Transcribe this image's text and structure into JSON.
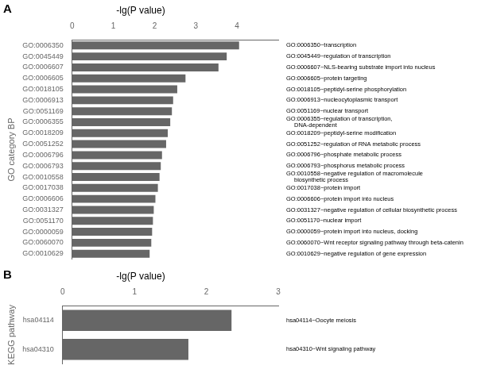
{
  "chart_data": [
    {
      "type": "bar",
      "orientation": "horizontal",
      "panel_label": "A",
      "title": "-lg(P value)",
      "y_label": "GO category BP",
      "categories": [
        "GO:0006350",
        "GO:0045449",
        "GO:0006607",
        "GO:0006605",
        "GO:0018105",
        "GO:0006913",
        "GO:0051169",
        "GO:0006355",
        "GO:0018209",
        "GO:0051252",
        "GO:0006796",
        "GO:0006793",
        "GO:0010558",
        "GO:0017038",
        "GO:0006606",
        "GO:0031327",
        "GO:0051170",
        "GO:0000059",
        "GO:0060070",
        "GO:0010629"
      ],
      "values": [
        4.05,
        3.75,
        3.55,
        2.75,
        2.55,
        2.45,
        2.42,
        2.38,
        2.32,
        2.28,
        2.18,
        2.15,
        2.12,
        2.08,
        2.02,
        1.98,
        1.96,
        1.94,
        1.92,
        1.88
      ],
      "annotations": [
        "GO:0006350~transcription",
        "GO:0045449~regulation of transcription",
        "GO:0006607~NLS-bearing substrate import into nucleus",
        "GO:0006605~protein targeting",
        "GO:0018105~peptidyl-serine phosphorylation",
        "GO:0006913~nucleocytoplasmic transport",
        "GO:0051169~nuclear transport",
        [
          "GO:0006355~regulation of transcription,",
          "DNA-dependent"
        ],
        "GO:0018209~peptidyl-serine modification",
        "GO:0051252~regulation of RNA metabolic process",
        "GO:0006796~phosphate metabolic process",
        "GO:0006793~phosphorus metabolic process",
        [
          "GO:0010558~negative regulation of macromolecule",
          "biosynthetic process"
        ],
        "GO:0017038~protein import",
        "GO:0006606~protein import into nucleus",
        "GO:0031327~negative regulation of cellular biosynthetic process",
        "GO:0051170~nuclear import",
        "GO:0000059~protein import into nucleus, docking",
        "GO:0060070~Wnt receptor signaling pathway through beta-catenin",
        "GO:0010629~negative regulation of gene expression"
      ],
      "color": "#666666",
      "xlim": [
        0,
        5
      ],
      "xticks": [
        0,
        1,
        2,
        3,
        4
      ],
      "grid": false,
      "legend": false
    },
    {
      "type": "bar",
      "orientation": "horizontal",
      "panel_label": "B",
      "title": "-lg(P value)",
      "y_label": "KEGG pathway",
      "categories": [
        "hsa04114",
        "hsa04310"
      ],
      "values": [
        2.35,
        1.75
      ],
      "annotations": [
        "hsa04114~Oocyte meiosis",
        "hsa04310~Wnt signaling pathway"
      ],
      "color": "#666666",
      "xlim": [
        0,
        3
      ],
      "xticks": [
        0,
        1,
        2,
        3
      ],
      "grid": false,
      "legend": false
    }
  ]
}
